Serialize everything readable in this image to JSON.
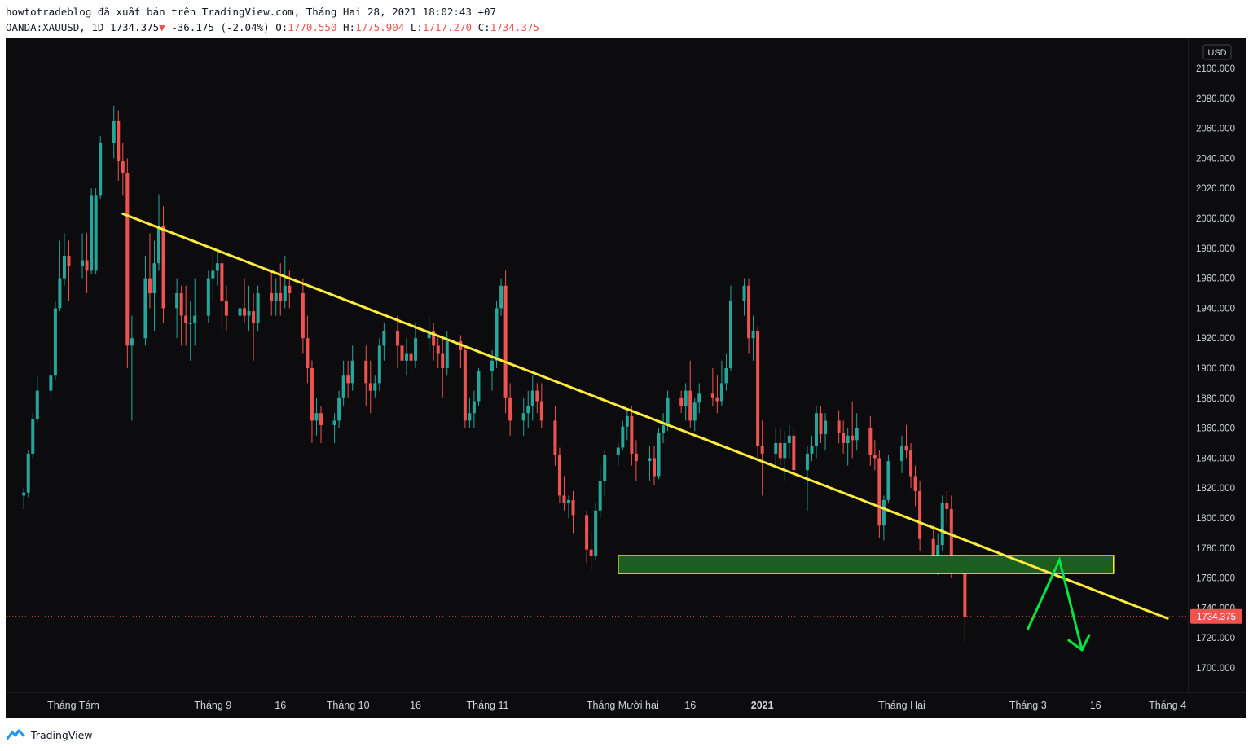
{
  "header": {
    "published": "howtotradeblog đã xuất bản trên TradingView.com, Tháng Hai 28, 2021 18:02:43 +07",
    "symbol": "OANDA:XAUUSD, 1D",
    "last": "1734.375",
    "change_arrow": "▼",
    "change": "-36.175 (-2.04%)",
    "o_label": "O:",
    "o_value": "1770.550",
    "h_label": "H:",
    "h_value": "1775.904",
    "l_label": "L:",
    "l_value": "1717.270",
    "c_label": "C:",
    "c_value": "1734.375"
  },
  "footer": {
    "brand": "TradingView",
    "logo_icon": "tradingview-logo-icon"
  },
  "colors": {
    "bull": "#26a69a",
    "bear": "#ef5350",
    "background": "#0c0c0e",
    "trendline": "#ffeb3b",
    "zone_fill": "#1b5e20",
    "zone_border": "#ffeb3b",
    "arrow": "#00e640",
    "price_tag": "#ef5350"
  },
  "chart_data": {
    "type": "candlestick",
    "currency": "USD",
    "ylim": [
      1690,
      2110
    ],
    "y_ticks": [
      1700,
      1720,
      1740,
      1760,
      1780,
      1800,
      1820,
      1840,
      1860,
      1880,
      1900,
      1920,
      1940,
      1960,
      1980,
      2000,
      2020,
      2040,
      2060,
      2080,
      2100
    ],
    "y_tick_labels": [
      "1700.000",
      "1720.000",
      "1740.000",
      "1760.000",
      "1780.000",
      "1800.000",
      "1820.000",
      "1840.000",
      "1860.000",
      "1880.000",
      "1900.000",
      "1920.000",
      "1940.000",
      "1960.000",
      "1980.000",
      "2000.000",
      "2020.000",
      "2040.000",
      "2060.000",
      "2080.000",
      "2100.000"
    ],
    "x_labels": [
      {
        "label": "Tháng Tám",
        "date": "2020-08-01"
      },
      {
        "label": "Tháng 9",
        "date": "2020-09-01"
      },
      {
        "label": "16",
        "date": "2020-09-16"
      },
      {
        "label": "Tháng 10",
        "date": "2020-10-01"
      },
      {
        "label": "16",
        "date": "2020-10-16"
      },
      {
        "label": "Tháng 11",
        "date": "2020-11-01"
      },
      {
        "label": "Tháng Mười hai",
        "date": "2020-12-01"
      },
      {
        "label": "16",
        "date": "2020-12-16"
      },
      {
        "label": "2021",
        "date": "2021-01-01",
        "bold": true
      },
      {
        "label": "Tháng Hai",
        "date": "2021-02-01"
      },
      {
        "label": "Tháng 3",
        "date": "2021-03-01"
      },
      {
        "label": "16",
        "date": "2021-03-16"
      },
      {
        "label": "Tháng 4",
        "date": "2021-04-01"
      }
    ],
    "last_price": 1734.375,
    "last_price_label": "1734.375",
    "start_date": "2020-07-21",
    "candles": [
      [
        1815,
        1820,
        1806,
        1817
      ],
      [
        1817,
        1845,
        1814,
        1843
      ],
      [
        1843,
        1870,
        1840,
        1866
      ],
      [
        1866,
        1895,
        1864,
        1885
      ],
      [
        1885,
        1905,
        1880,
        1895
      ],
      [
        1895,
        1945,
        1892,
        1940
      ],
      [
        1940,
        1985,
        1938,
        1960
      ],
      [
        1960,
        1990,
        1955,
        1975
      ],
      [
        1975,
        1985,
        1945,
        1968
      ],
      [
        1968,
        1990,
        1960,
        1972
      ],
      [
        1972,
        1990,
        1950,
        1965
      ],
      [
        1965,
        2020,
        1963,
        2015
      ],
      [
        1965,
        2020,
        1963,
        2015
      ],
      [
        2015,
        2055,
        2013,
        2050
      ],
      [
        2050,
        2075,
        2040,
        2065
      ],
      [
        2065,
        2072,
        2025,
        2038
      ],
      [
        2038,
        2050,
        2015,
        2030
      ],
      [
        2030,
        2040,
        1900,
        1915
      ],
      [
        1915,
        1935,
        1865,
        1920
      ],
      [
        1920,
        1975,
        1915,
        1960
      ],
      [
        1960,
        1990,
        1940,
        1950
      ],
      [
        1950,
        1985,
        1925,
        1970
      ],
      [
        1970,
        2016,
        1965,
        1995
      ],
      [
        1995,
        2008,
        1930,
        1940
      ],
      [
        1940,
        1960,
        1920,
        1950
      ],
      [
        1950,
        1955,
        1915,
        1935
      ],
      [
        1935,
        1955,
        1915,
        1930
      ],
      [
        1930,
        1945,
        1905,
        1930
      ],
      [
        1930,
        1960,
        1915,
        1935
      ],
      [
        1935,
        1965,
        1930,
        1960
      ],
      [
        1960,
        1978,
        1945,
        1965
      ],
      [
        1965,
        1978,
        1955,
        1970
      ],
      [
        1970,
        1975,
        1925,
        1945
      ],
      [
        1945,
        1955,
        1925,
        1935
      ],
      [
        1935,
        1950,
        1920,
        1940
      ],
      [
        1940,
        1960,
        1930,
        1935
      ],
      [
        1935,
        1955,
        1925,
        1938
      ],
      [
        1938,
        1950,
        1905,
        1930
      ],
      [
        1930,
        1955,
        1925,
        1950
      ],
      [
        1950,
        1965,
        1935,
        1945
      ],
      [
        1945,
        1960,
        1935,
        1950
      ],
      [
        1950,
        1970,
        1935,
        1945
      ],
      [
        1945,
        1975,
        1940,
        1955
      ],
      [
        1955,
        1965,
        1940,
        1950
      ],
      [
        1950,
        1960,
        1910,
        1920
      ],
      [
        1920,
        1935,
        1890,
        1900
      ],
      [
        1900,
        1905,
        1850,
        1865
      ],
      [
        1865,
        1880,
        1855,
        1870
      ],
      [
        1870,
        1875,
        1850,
        1862
      ],
      [
        1862,
        1870,
        1850,
        1865
      ],
      [
        1865,
        1885,
        1860,
        1880
      ],
      [
        1880,
        1905,
        1875,
        1895
      ],
      [
        1895,
        1905,
        1880,
        1890
      ],
      [
        1890,
        1915,
        1885,
        1905
      ],
      [
        1905,
        1915,
        1875,
        1890
      ],
      [
        1890,
        1905,
        1870,
        1885
      ],
      [
        1885,
        1895,
        1880,
        1890
      ],
      [
        1890,
        1920,
        1885,
        1915
      ],
      [
        1915,
        1930,
        1905,
        1925
      ],
      [
        1925,
        1935,
        1900,
        1915
      ],
      [
        1915,
        1930,
        1885,
        1905
      ],
      [
        1905,
        1920,
        1895,
        1910
      ],
      [
        1910,
        1918,
        1895,
        1905
      ],
      [
        1905,
        1930,
        1900,
        1920
      ],
      [
        1920,
        1935,
        1910,
        1925
      ],
      [
        1925,
        1930,
        1905,
        1915
      ],
      [
        1915,
        1920,
        1900,
        1910
      ],
      [
        1910,
        1920,
        1880,
        1900
      ],
      [
        1900,
        1925,
        1895,
        1918
      ],
      [
        1918,
        1922,
        1900,
        1912
      ],
      [
        1912,
        1915,
        1860,
        1865
      ],
      [
        1865,
        1880,
        1860,
        1870
      ],
      [
        1870,
        1885,
        1860,
        1878
      ],
      [
        1878,
        1900,
        1875,
        1898
      ],
      [
        1898,
        1912,
        1885,
        1905
      ],
      [
        1905,
        1945,
        1900,
        1940
      ],
      [
        1940,
        1960,
        1935,
        1955
      ],
      [
        1955,
        1965,
        1870,
        1880
      ],
      [
        1880,
        1890,
        1855,
        1865
      ],
      [
        1865,
        1880,
        1855,
        1870
      ],
      [
        1870,
        1885,
        1860,
        1875
      ],
      [
        1875,
        1895,
        1865,
        1885
      ],
      [
        1885,
        1890,
        1870,
        1878
      ],
      [
        1878,
        1890,
        1860,
        1865
      ],
      [
        1865,
        1875,
        1835,
        1842
      ],
      [
        1842,
        1847,
        1810,
        1815
      ],
      [
        1815,
        1828,
        1805,
        1810
      ],
      [
        1810,
        1815,
        1800,
        1812
      ],
      [
        1812,
        1818,
        1790,
        1802
      ],
      [
        1802,
        1805,
        1770,
        1779
      ],
      [
        1779,
        1790,
        1765,
        1775
      ],
      [
        1775,
        1810,
        1772,
        1805
      ],
      [
        1805,
        1835,
        1800,
        1825
      ],
      [
        1825,
        1845,
        1815,
        1842
      ],
      [
        1842,
        1850,
        1835,
        1847
      ],
      [
        1847,
        1865,
        1845,
        1861
      ],
      [
        1861,
        1872,
        1852,
        1868
      ],
      [
        1868,
        1875,
        1835,
        1843
      ],
      [
        1843,
        1852,
        1825,
        1838
      ],
      [
        1838,
        1848,
        1825,
        1840
      ],
      [
        1840,
        1848,
        1822,
        1828
      ],
      [
        1828,
        1860,
        1826,
        1857
      ],
      [
        1857,
        1870,
        1850,
        1862
      ],
      [
        1862,
        1885,
        1858,
        1880
      ],
      [
        1880,
        1885,
        1870,
        1875
      ],
      [
        1875,
        1890,
        1865,
        1885
      ],
      [
        1885,
        1905,
        1860,
        1865
      ],
      [
        1865,
        1880,
        1858,
        1877
      ],
      [
        1877,
        1890,
        1870,
        1883
      ],
      [
        1883,
        1900,
        1875,
        1880
      ],
      [
        1880,
        1895,
        1870,
        1878
      ],
      [
        1878,
        1905,
        1875,
        1890
      ],
      [
        1890,
        1910,
        1885,
        1900
      ],
      [
        1900,
        1955,
        1898,
        1945
      ],
      [
        1945,
        1960,
        1935,
        1955
      ],
      [
        1955,
        1960,
        1910,
        1920
      ],
      [
        1920,
        1935,
        1905,
        1925
      ],
      [
        1925,
        1928,
        1840,
        1848
      ],
      [
        1848,
        1865,
        1815,
        1843
      ],
      [
        1843,
        1860,
        1835,
        1850
      ],
      [
        1850,
        1860,
        1835,
        1840
      ],
      [
        1840,
        1858,
        1825,
        1850
      ],
      [
        1850,
        1862,
        1840,
        1855
      ],
      [
        1855,
        1860,
        1828,
        1832
      ],
      [
        1832,
        1848,
        1805,
        1843
      ],
      [
        1843,
        1855,
        1838,
        1848
      ],
      [
        1848,
        1875,
        1840,
        1870
      ],
      [
        1870,
        1875,
        1850,
        1856
      ],
      [
        1856,
        1870,
        1845,
        1865
      ],
      [
        1865,
        1872,
        1850,
        1857
      ],
      [
        1857,
        1865,
        1843,
        1850
      ],
      [
        1850,
        1860,
        1835,
        1855
      ],
      [
        1855,
        1878,
        1840,
        1852
      ],
      [
        1852,
        1870,
        1845,
        1860
      ],
      [
        1860,
        1868,
        1835,
        1842
      ],
      [
        1842,
        1852,
        1832,
        1840
      ],
      [
        1840,
        1845,
        1787,
        1795
      ],
      [
        1795,
        1815,
        1785,
        1812
      ],
      [
        1812,
        1842,
        1810,
        1838
      ],
      [
        1838,
        1855,
        1830,
        1848
      ],
      [
        1848,
        1862,
        1840,
        1845
      ],
      [
        1845,
        1850,
        1820,
        1828
      ],
      [
        1828,
        1835,
        1808,
        1818
      ],
      [
        1818,
        1825,
        1778,
        1786
      ],
      [
        1786,
        1795,
        1764,
        1775
      ],
      [
        1775,
        1790,
        1762,
        1782
      ],
      [
        1782,
        1815,
        1778,
        1810
      ],
      [
        1810,
        1818,
        1795,
        1806
      ],
      [
        1806,
        1815,
        1760,
        1770
      ],
      [
        1770,
        1776,
        1717,
        1734
      ]
    ],
    "trendline": {
      "from": {
        "date": "2020-08-12",
        "price": 2003
      },
      "to": {
        "date": "2021-04-01",
        "price": 1733
      }
    },
    "zone": {
      "from_date": "2020-11-30",
      "to_date": "2021-03-20",
      "low": 1763,
      "high": 1775
    },
    "arrow_up": {
      "from": {
        "date": "2021-03-01",
        "price": 1726
      },
      "to": {
        "date": "2021-03-08",
        "price": 1772
      }
    },
    "arrow_down": {
      "from": {
        "date": "2021-03-08",
        "price": 1772
      },
      "to": {
        "date": "2021-03-13",
        "price": 1712
      }
    }
  }
}
